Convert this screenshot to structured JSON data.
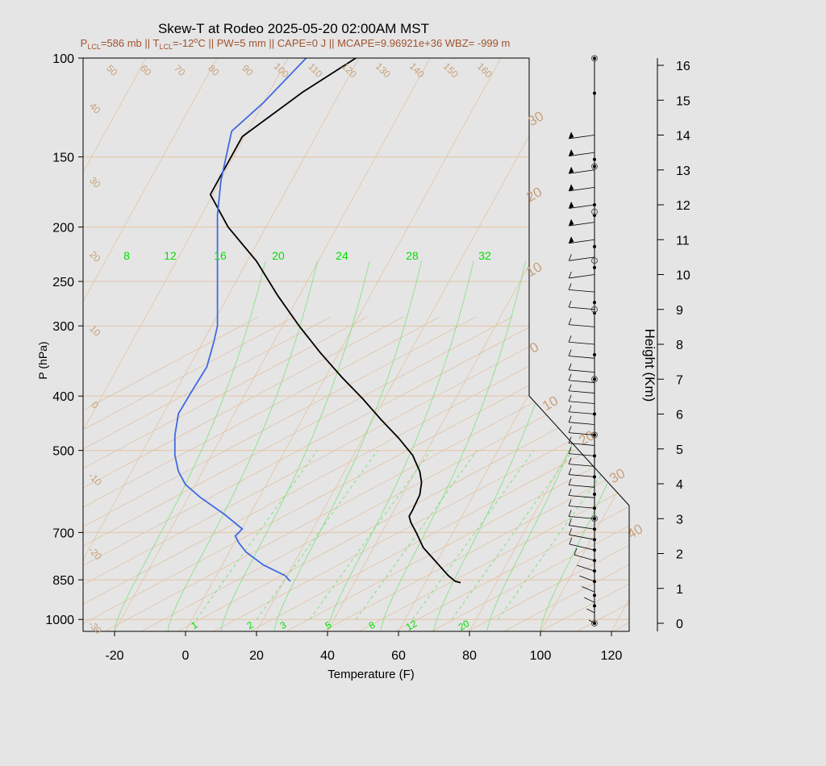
{
  "title": "Skew-T at Rodeo 2025-05-20 02:00AM MST",
  "subtitle": {
    "plcl": "P",
    "plcl_sub": "LCL",
    "plcl_val": "=586 mb || T",
    "tlcl_sub": "LCL",
    "tlcl_val": "=-12",
    "deg": "o",
    "rest": "C || PW=5 mm || CAPE=0 J || MCAPE=9.96921e+36 WBZ= -999 m"
  },
  "colors": {
    "background": "#e5e5e5",
    "temperature": "#000000",
    "dewpoint": "#4169e1",
    "isotherm": "#e3c3a4",
    "mixing_ratio": "#7fe07f",
    "mixing_label": "#00e000",
    "label_tan": "#c8a07a",
    "subtitle": "#a0522d"
  },
  "chart_data": {
    "type": "line",
    "xlabel": "Temperature (F)",
    "ylabel": "P (hPa)",
    "y2label": "Height (Km)",
    "x_ticks": [
      "-20",
      "0",
      "20",
      "40",
      "60",
      "80",
      "100",
      "120"
    ],
    "p_ticks": [
      "100",
      "150",
      "200",
      "250",
      "300",
      "400",
      "500",
      "700",
      "850",
      "1000"
    ],
    "height_ticks": [
      "0",
      "1",
      "2",
      "3",
      "4",
      "5",
      "6",
      "7",
      "8",
      "9",
      "10",
      "11",
      "12",
      "13",
      "14",
      "15",
      "16"
    ],
    "dry_adiabat_labels": [
      "50",
      "60",
      "70",
      "80",
      "90",
      "100",
      "110",
      "120",
      "130",
      "140",
      "150",
      "160"
    ],
    "isotherm_labels": [
      "40",
      "30",
      "20",
      "10",
      "0",
      "-10",
      "-20",
      "-30"
    ],
    "isotherm_labels_right": [
      "30",
      "20",
      "10",
      "0",
      "10",
      "20",
      "30",
      "40"
    ],
    "theta_e_labels": [
      "8",
      "12",
      "16",
      "20",
      "24",
      "28",
      "32"
    ],
    "mixing_ratio_labels": [
      "1",
      "2",
      "3",
      "5",
      "8",
      "12",
      "20"
    ],
    "series": [
      {
        "role": "temperature",
        "points": [
          [
            77.5,
            860
          ],
          [
            76,
            855
          ],
          [
            74,
            835
          ],
          [
            71,
            795
          ],
          [
            67,
            745
          ],
          [
            65,
            700
          ],
          [
            63.5,
            672
          ],
          [
            63,
            655
          ],
          [
            64,
            638
          ],
          [
            66,
            600
          ],
          [
            66.5,
            570
          ],
          [
            66,
            545
          ],
          [
            64,
            510
          ],
          [
            60,
            475
          ],
          [
            55,
            440
          ],
          [
            50,
            405
          ],
          [
            44,
            370
          ],
          [
            38,
            335
          ],
          [
            32,
            300
          ],
          [
            26,
            265
          ],
          [
            20,
            230
          ],
          [
            12,
            200
          ],
          [
            7,
            175
          ],
          [
            16,
            138
          ],
          [
            33,
            115
          ],
          [
            48,
            100
          ]
        ]
      },
      {
        "role": "dewpoint",
        "points": [
          [
            29.5,
            855
          ],
          [
            28,
            835
          ],
          [
            22,
            800
          ],
          [
            17,
            758
          ],
          [
            15,
            730
          ],
          [
            14,
            710
          ],
          [
            16,
            690
          ],
          [
            11,
            650
          ],
          [
            4,
            605
          ],
          [
            0,
            575
          ],
          [
            -2,
            545
          ],
          [
            -3,
            510
          ],
          [
            -3,
            470
          ],
          [
            -2,
            430
          ],
          [
            2,
            390
          ],
          [
            6,
            355
          ],
          [
            8,
            320
          ],
          [
            9,
            300
          ],
          [
            9,
            270
          ],
          [
            9,
            240
          ],
          [
            9,
            210
          ],
          [
            9,
            190
          ],
          [
            10,
            165
          ],
          [
            13,
            135
          ],
          [
            22,
            120
          ],
          [
            34,
            100
          ]
        ]
      }
    ],
    "wind_hodo": {
      "heights_km": [
        0,
        0.3,
        0.6,
        0.9,
        1.2,
        1.5,
        1.8,
        2.1,
        2.4,
        2.7,
        3.0,
        3.3,
        3.6,
        3.9,
        4.2,
        4.5,
        4.8,
        5.1,
        5.4,
        5.7,
        6.0,
        6.3,
        6.6,
        6.9,
        7.2,
        7.6,
        8.0,
        8.5,
        9.0,
        9.5,
        10.0,
        10.5,
        11.0,
        11.5,
        12.0,
        12.5,
        13.0,
        13.5,
        14.0
      ],
      "dots_km": [
        0,
        0.5,
        0.8,
        1.2,
        1.5,
        1.8,
        2.1,
        2.4,
        2.7,
        3.0,
        3.3,
        3.7,
        4.2,
        4.8,
        5.4,
        6.0,
        7.0,
        7.7,
        8.9,
        9.2,
        10.2,
        10.8,
        11.7,
        12.0,
        13.1,
        13.3,
        15.2,
        16.2
      ],
      "circle_km": [
        0,
        3.0,
        5.4,
        7.0,
        9.0,
        10.4,
        11.8,
        13.1,
        16.2
      ]
    }
  }
}
